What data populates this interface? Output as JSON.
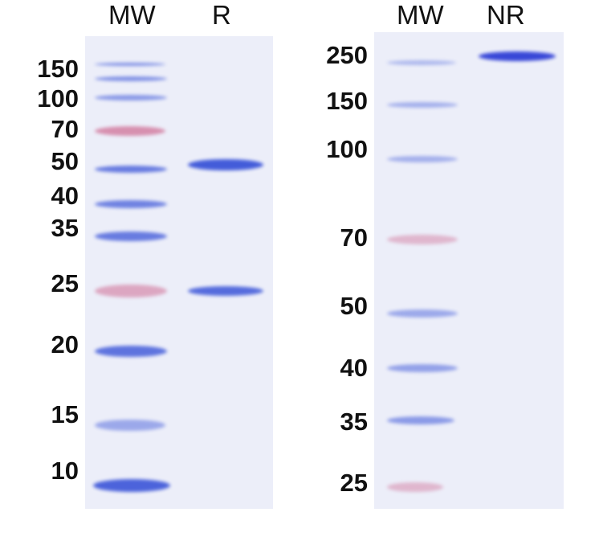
{
  "left_panel": {
    "lane_labels": [
      "MW",
      "R"
    ],
    "marker_labels": [
      "150",
      "100",
      "70",
      "50",
      "40",
      "35",
      "25",
      "20",
      "15",
      "10"
    ]
  },
  "right_panel": {
    "lane_labels": [
      "MW",
      "NR"
    ],
    "marker_labels": [
      "250",
      "150",
      "100",
      "70",
      "50",
      "40",
      "35",
      "25"
    ]
  },
  "colors": {
    "gel": "#eceef9",
    "blue_band": "#3b55d8",
    "pink_band": "#c9517e"
  }
}
